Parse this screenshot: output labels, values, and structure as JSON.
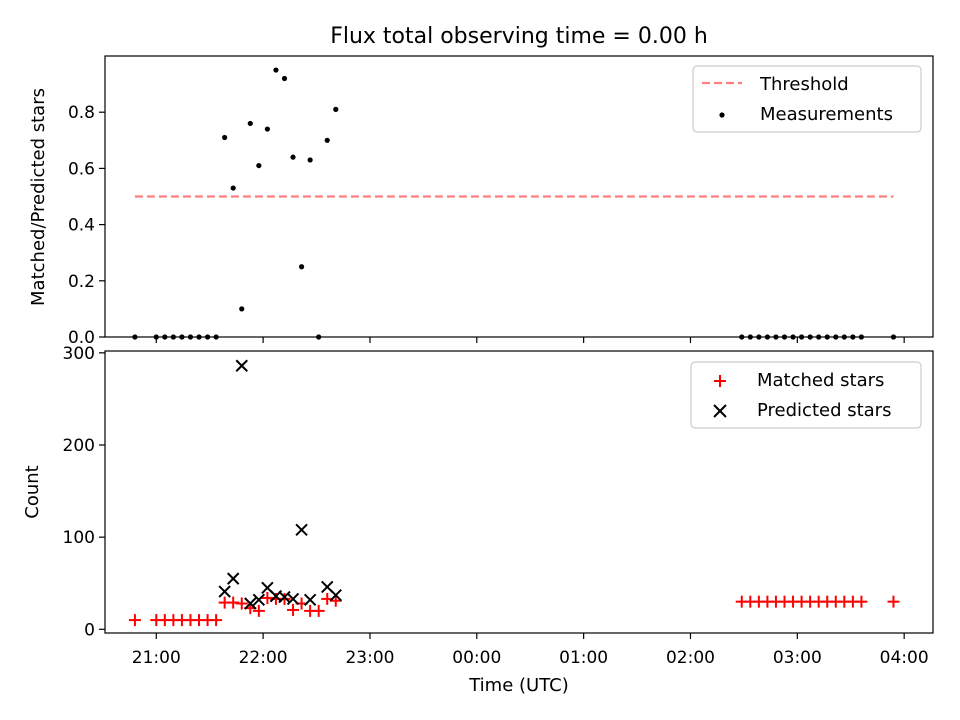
{
  "chart_data": [
    {
      "type": "scatter",
      "title": "Flux total observing time = 0.00 h",
      "ylabel": "Matched/Predicted stars",
      "xlabel": "",
      "x_unit": "hours (UTC, relative to 00:00)",
      "xlim": [
        -3.48,
        4.27
      ],
      "ylim": [
        0,
        1.0
      ],
      "yticks": [
        "0.0",
        "0.2",
        "0.4",
        "0.6",
        "0.8"
      ],
      "threshold": {
        "name": "Threshold",
        "value": 0.5,
        "x_range": [
          -3.2,
          3.9
        ],
        "color": "#ff7f7f"
      },
      "legend": {
        "position": "upper right",
        "entries": [
          "Threshold",
          "Measurements"
        ]
      },
      "series": [
        {
          "name": "Measurements",
          "color": "#000000",
          "points": [
            [
              -3.2,
              0.0
            ],
            [
              -3.0,
              0.0
            ],
            [
              -2.92,
              0.0
            ],
            [
              -2.84,
              0.0
            ],
            [
              -2.76,
              0.0
            ],
            [
              -2.68,
              0.0
            ],
            [
              -2.6,
              0.0
            ],
            [
              -2.52,
              0.0
            ],
            [
              -2.44,
              0.0
            ],
            [
              -2.36,
              0.71
            ],
            [
              -2.28,
              0.53
            ],
            [
              -2.2,
              0.1
            ],
            [
              -2.12,
              0.76
            ],
            [
              -2.04,
              0.61
            ],
            [
              -1.96,
              0.74
            ],
            [
              -1.88,
              0.95
            ],
            [
              -1.8,
              0.92
            ],
            [
              -1.72,
              0.64
            ],
            [
              -1.64,
              0.25
            ],
            [
              -1.56,
              0.63
            ],
            [
              -1.48,
              0.0
            ],
            [
              -1.4,
              0.7
            ],
            [
              -1.32,
              0.81
            ],
            [
              2.48,
              0.0
            ],
            [
              2.56,
              0.0
            ],
            [
              2.64,
              0.0
            ],
            [
              2.72,
              0.0
            ],
            [
              2.8,
              0.0
            ],
            [
              2.88,
              0.0
            ],
            [
              2.96,
              0.0
            ],
            [
              3.04,
              0.0
            ],
            [
              3.12,
              0.0
            ],
            [
              3.2,
              0.0
            ],
            [
              3.28,
              0.0
            ],
            [
              3.36,
              0.0
            ],
            [
              3.44,
              0.0
            ],
            [
              3.52,
              0.0
            ],
            [
              3.6,
              0.0
            ],
            [
              3.9,
              0.0
            ]
          ]
        }
      ]
    },
    {
      "type": "scatter",
      "title": "",
      "ylabel": "Count",
      "xlabel": "Time (UTC)",
      "x_unit": "hours (UTC, relative to 00:00)",
      "xlim": [
        -3.48,
        4.27
      ],
      "ylim": [
        -4,
        302
      ],
      "yticks": [
        "0",
        "100",
        "200",
        "300"
      ],
      "xticks": [
        {
          "label": "21:00",
          "hour": -3
        },
        {
          "label": "22:00",
          "hour": -2
        },
        {
          "label": "23:00",
          "hour": -1
        },
        {
          "label": "00:00",
          "hour": 0
        },
        {
          "label": "01:00",
          "hour": 1
        },
        {
          "label": "02:00",
          "hour": 2
        },
        {
          "label": "03:00",
          "hour": 3
        },
        {
          "label": "04:00",
          "hour": 4
        }
      ],
      "legend": {
        "position": "upper right",
        "entries": [
          "Matched stars",
          "Predicted stars"
        ]
      },
      "series": [
        {
          "name": "Matched stars",
          "marker": "+",
          "color": "#ff0000",
          "points": [
            [
              -3.2,
              10
            ],
            [
              -3.0,
              10
            ],
            [
              -2.92,
              10
            ],
            [
              -2.84,
              10
            ],
            [
              -2.76,
              10
            ],
            [
              -2.68,
              10
            ],
            [
              -2.6,
              10
            ],
            [
              -2.52,
              10
            ],
            [
              -2.44,
              10
            ],
            [
              -2.36,
              29
            ],
            [
              -2.28,
              29
            ],
            [
              -2.2,
              28
            ],
            [
              -2.12,
              23
            ],
            [
              -2.04,
              20
            ],
            [
              -1.96,
              34
            ],
            [
              -1.88,
              33
            ],
            [
              -1.8,
              33
            ],
            [
              -1.72,
              21
            ],
            [
              -1.64,
              28
            ],
            [
              -1.56,
              20
            ],
            [
              -1.48,
              20
            ],
            [
              -1.4,
              33
            ],
            [
              -1.32,
              31
            ],
            [
              2.48,
              30
            ],
            [
              2.56,
              30
            ],
            [
              2.64,
              30
            ],
            [
              2.72,
              30
            ],
            [
              2.8,
              30
            ],
            [
              2.88,
              30
            ],
            [
              2.96,
              30
            ],
            [
              3.04,
              30
            ],
            [
              3.12,
              30
            ],
            [
              3.2,
              30
            ],
            [
              3.28,
              30
            ],
            [
              3.36,
              30
            ],
            [
              3.44,
              30
            ],
            [
              3.52,
              30
            ],
            [
              3.6,
              30
            ],
            [
              3.9,
              30
            ]
          ]
        },
        {
          "name": "Predicted stars",
          "marker": "x",
          "color": "#000000",
          "points": [
            [
              -2.36,
              41
            ],
            [
              -2.28,
              55
            ],
            [
              -2.2,
              286
            ],
            [
              -2.12,
              28
            ],
            [
              -2.04,
              32
            ],
            [
              -1.96,
              45
            ],
            [
              -1.88,
              36
            ],
            [
              -1.8,
              35
            ],
            [
              -1.72,
              33
            ],
            [
              -1.64,
              108
            ],
            [
              -1.56,
              32
            ],
            [
              -1.4,
              46
            ],
            [
              -1.32,
              37
            ]
          ]
        }
      ]
    }
  ]
}
